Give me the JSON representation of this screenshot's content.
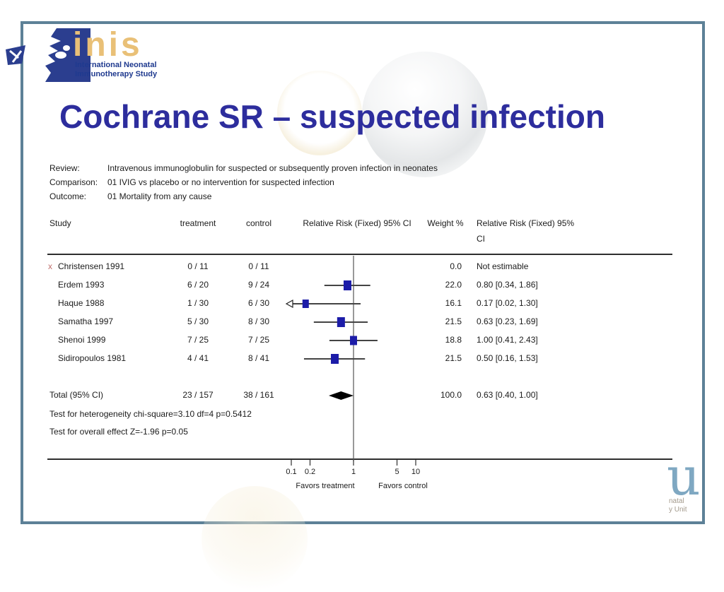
{
  "slide": {
    "title": "Cochrane SR – suspected infection",
    "logo": {
      "wordmark": "inis",
      "tagline_line1": "International Neonatal",
      "tagline_line2": "Immunotherapy Study"
    },
    "footer_logo": {
      "glyph": "u",
      "line1": "natal",
      "line2": "y Unit"
    }
  },
  "meta": {
    "review_label": "Review:",
    "review": "Intravenous immunoglobulin for suspected or subsequently proven infection in neonates",
    "comparison_label": "Comparison:",
    "comparison": "01 IVIG vs placebo or no intervention for suspected infection",
    "outcome_label": "Outcome:",
    "outcome": "01 Mortality from any cause"
  },
  "chart_data": {
    "type": "forest",
    "scale": "log",
    "header": {
      "study": "Study",
      "treatment": "treatment",
      "control": "control",
      "rr_plot": "Relative Risk (Fixed) 95% CI",
      "weight": "Weight %",
      "rr_text_line1": "Relative Risk (Fixed) 95%",
      "rr_text_line2": "CI"
    },
    "studies": [
      {
        "study": "Christensen 1991",
        "excluded_mark": "x",
        "treatment": "0 / 11",
        "control": "0 / 11",
        "weight": "0.0",
        "rr_text": "Not estimable",
        "estimable": false
      },
      {
        "study": "Erdem 1993",
        "treatment": "6 / 20",
        "control": "9 / 24",
        "weight": "22.0",
        "rr_text": "0.80 [0.34, 1.86]",
        "estimable": true,
        "rr": 0.8,
        "lo": 0.34,
        "hi": 1.86
      },
      {
        "study": "Haque 1988",
        "treatment": "1 / 30",
        "control": "6 / 30",
        "weight": "16.1",
        "rr_text": "0.17 [0.02, 1.30]",
        "estimable": true,
        "rr": 0.17,
        "lo": 0.02,
        "hi": 1.3
      },
      {
        "study": "Samatha 1997",
        "treatment": "5 / 30",
        "control": "8 / 30",
        "weight": "21.5",
        "rr_text": "0.63 [0.23, 1.69]",
        "estimable": true,
        "rr": 0.63,
        "lo": 0.23,
        "hi": 1.69
      },
      {
        "study": "Shenoi 1999",
        "treatment": "7 / 25",
        "control": "7 / 25",
        "weight": "18.8",
        "rr_text": "1.00 [0.41, 2.43]",
        "estimable": true,
        "rr": 1.0,
        "lo": 0.41,
        "hi": 2.43
      },
      {
        "study": "Sidiropoulos 1981",
        "treatment": "4 / 41",
        "control": "8 / 41",
        "weight": "21.5",
        "rr_text": "0.50 [0.16, 1.53]",
        "estimable": true,
        "rr": 0.5,
        "lo": 0.16,
        "hi": 1.53
      }
    ],
    "total": {
      "label": "Total (95% CI)",
      "treatment": "23 / 157",
      "control": "38 / 161",
      "weight": "100.0",
      "rr_text": "0.63 [0.40, 1.00]",
      "rr": 0.63,
      "lo": 0.4,
      "hi": 1.0
    },
    "heterogeneity_test": "Test for heterogeneity chi-square=3.10 df=4 p=0.5412",
    "overall_effect_test": "Test for overall effect Z=-1.96 p=0.05",
    "x_axis": {
      "ticks": [
        "0.1",
        "0.2",
        "1",
        "5",
        "10"
      ],
      "tick_values": [
        0.1,
        0.2,
        1,
        5,
        10
      ],
      "left_label": "Favors treatment",
      "right_label": "Favors control"
    },
    "style": {
      "box_color": "#1c1ca8",
      "line_color": "#444444",
      "diamond_color": "#000000",
      "axis_color": "#2e2e2e"
    }
  },
  "colors": {
    "border": "#5d8197",
    "title": "#2d2d9d",
    "logo_gold": "#e9c077",
    "logo_blue": "#2b3e8f",
    "excluded_x": "#c0706e",
    "footer_logo_blue": "#7fa8c2"
  }
}
